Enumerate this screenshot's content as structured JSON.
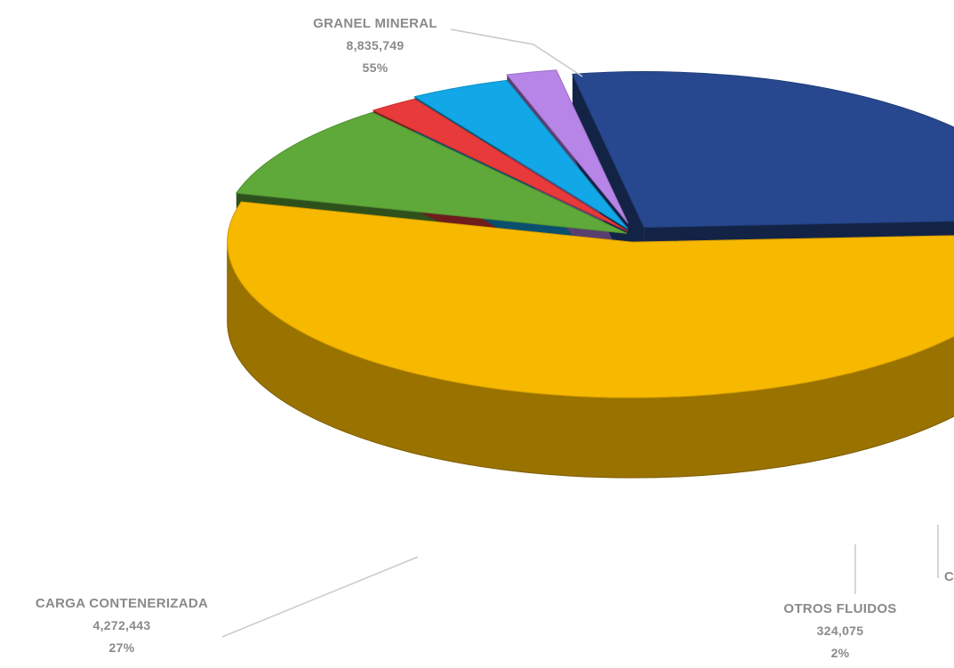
{
  "chart_data": {
    "type": "pie",
    "style": "3d-exploded",
    "slices": [
      {
        "label": "GRANEL MINERAL",
        "value": 8835749,
        "value_text": "8,835,749",
        "percent": 55,
        "percent_text": "55%",
        "color": "#F7B800"
      },
      {
        "label": "",
        "value": null,
        "value_text": "",
        "percent": 10,
        "percent_text": "",
        "color": "#5FA83A"
      },
      {
        "label": "",
        "value": null,
        "value_text": "",
        "percent": 2,
        "percent_text": "",
        "color": "#E83A3A"
      },
      {
        "label": "",
        "value": null,
        "value_text": "",
        "percent": 4,
        "percent_text": "",
        "color": "#12A7E6"
      },
      {
        "label": "OTROS FLUIDOS",
        "value": 324075,
        "value_text": "324,075",
        "percent": 2,
        "percent_text": "2%",
        "color": "#B784E8"
      },
      {
        "label": "CARGA CONTENERIZADA",
        "value": 4272443,
        "value_text": "4,272,443",
        "percent": 27,
        "percent_text": "27%",
        "color": "#27488F"
      }
    ],
    "clipped_label_fragment": "C"
  }
}
